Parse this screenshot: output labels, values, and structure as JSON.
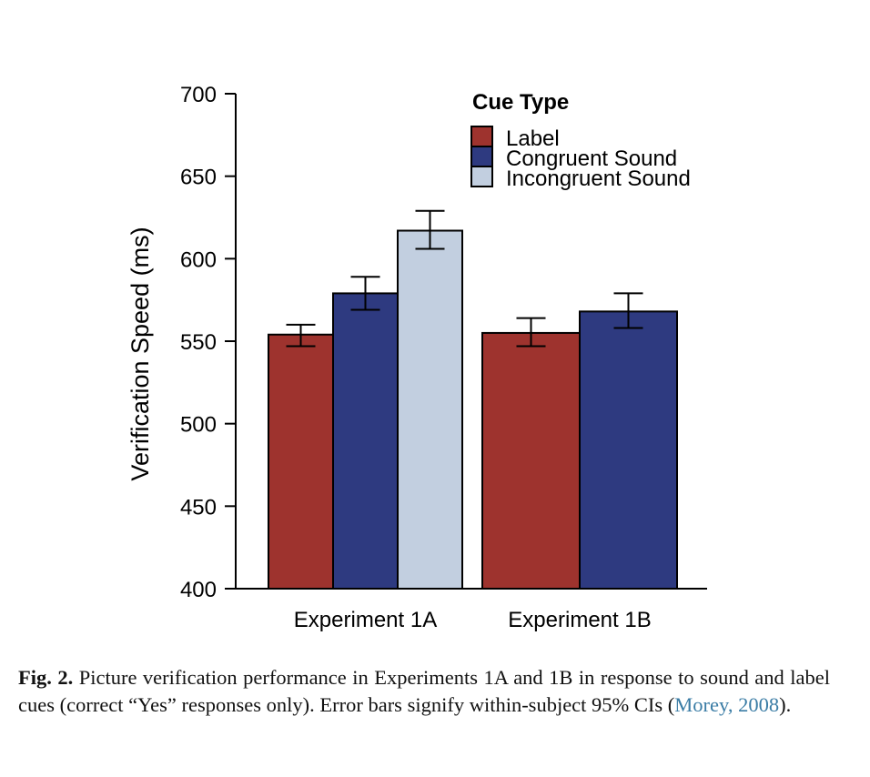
{
  "chart_data": {
    "type": "bar",
    "ylabel": "Verification Speed (ms)",
    "xlabel": "",
    "ylim": [
      400,
      700
    ],
    "yticks": [
      "400",
      "450",
      "500",
      "550",
      "600",
      "650",
      "700"
    ],
    "categories": [
      "Experiment 1A",
      "Experiment 1B"
    ],
    "legend_title": "Cue Type",
    "legend_position": "top-right",
    "grid": false,
    "series": [
      {
        "name": "Label",
        "color": "#9e332e",
        "values": [
          554,
          555
        ],
        "ci_low": [
          547,
          547
        ],
        "ci_high": [
          560,
          564
        ]
      },
      {
        "name": "Congruent Sound",
        "color": "#2e3a80",
        "values": [
          579,
          568
        ],
        "ci_low": [
          569,
          558
        ],
        "ci_high": [
          589,
          579
        ]
      },
      {
        "name": "Incongruent Sound",
        "color": "#c2cfe0",
        "values": [
          617,
          null
        ],
        "ci_low": [
          606,
          null
        ],
        "ci_high": [
          629,
          null
        ]
      }
    ]
  },
  "caption": {
    "label": "Fig. 2.",
    "text": " Picture verification performance in Experiments 1A and 1B in response to sound and label cues (correct “Yes” responses only). Error bars signify within-subject 95% CIs (",
    "link": "Morey, 2008",
    "end": ")."
  }
}
